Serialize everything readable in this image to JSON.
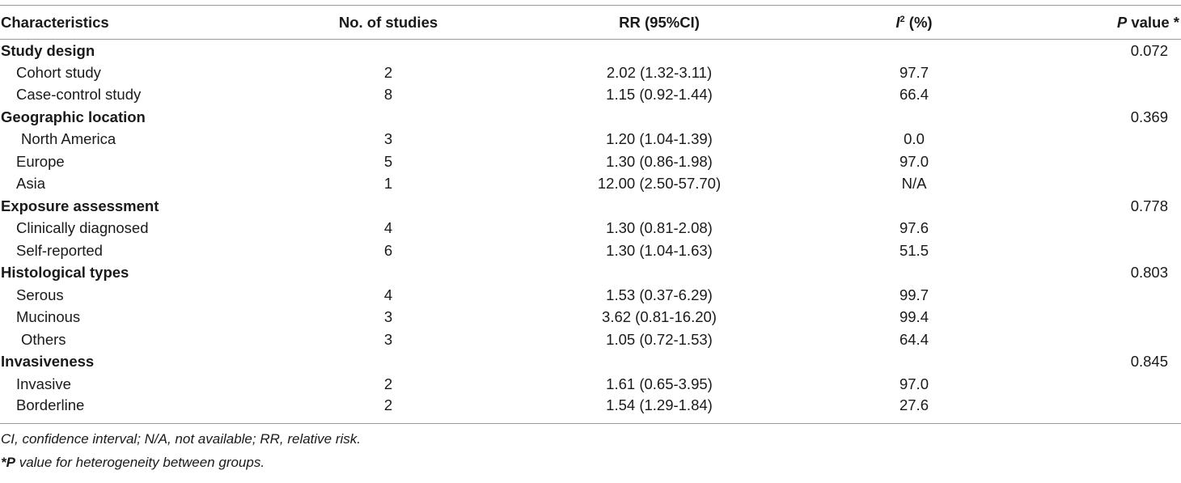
{
  "table": {
    "headers": {
      "characteristics": "Characteristics",
      "studies": "No. of studies",
      "rr": "RR (95%CI)",
      "i2_letter": "I",
      "i2_sup": "2",
      "i2_unit": " (%)",
      "p_letter": "P",
      "p_rest": " value *"
    },
    "rows": [
      {
        "name": "Study design",
        "studies": "",
        "rr": "",
        "i2": "",
        "p": "0.072"
      },
      {
        "name": "Cohort study",
        "studies": "2",
        "rr": "2.02 (1.32-3.11)",
        "i2": "97.7",
        "p": ""
      },
      {
        "name": "Case-control study",
        "studies": "8",
        "rr": "1.15 (0.92-1.44)",
        "i2": "66.4",
        "p": ""
      },
      {
        "name": "Geographic location",
        "studies": "",
        "rr": "",
        "i2": "",
        "p": "0.369"
      },
      {
        "name": "North America",
        "studies": "3",
        "rr": "1.20 (1.04-1.39)",
        "i2": "0.0",
        "p": ""
      },
      {
        "name": "Europe",
        "studies": "5",
        "rr": "1.30 (0.86-1.98)",
        "i2": "97.0",
        "p": ""
      },
      {
        "name": "Asia",
        "studies": "1",
        "rr": "12.00 (2.50-57.70)",
        "i2": "N/A",
        "p": ""
      },
      {
        "name": "Exposure assessment",
        "studies": "",
        "rr": "",
        "i2": "",
        "p": "0.778"
      },
      {
        "name": "Clinically diagnosed",
        "studies": "4",
        "rr": "1.30 (0.81-2.08)",
        "i2": "97.6",
        "p": ""
      },
      {
        "name": "Self-reported",
        "studies": "6",
        "rr": "1.30 (1.04-1.63)",
        "i2": "51.5",
        "p": ""
      },
      {
        "name": "Histological types",
        "studies": "",
        "rr": "",
        "i2": "",
        "p": "0.803"
      },
      {
        "name": "Serous",
        "studies": "4",
        "rr": "1.53 (0.37-6.29)",
        "i2": "99.7",
        "p": ""
      },
      {
        "name": "Mucinous",
        "studies": "3",
        "rr": "3.62 (0.81-16.20)",
        "i2": "99.4",
        "p": ""
      },
      {
        "name": "Others",
        "studies": "3",
        "rr": "1.05 (0.72-1.53)",
        "i2": "64.4",
        "p": ""
      },
      {
        "name": "Invasiveness",
        "studies": "",
        "rr": "",
        "i2": "",
        "p": "0.845"
      },
      {
        "name": "Invasive",
        "studies": "2",
        "rr": "1.61 (0.65-3.95)",
        "i2": "97.0",
        "p": ""
      },
      {
        "name": "Borderline",
        "studies": "2",
        "rr": "1.54 (1.29-1.84)",
        "i2": "27.6",
        "p": ""
      }
    ]
  },
  "footnotes": {
    "abbreviations": "CI, confidence interval; N/A, not available; RR, relative risk.",
    "p_marker": "*P",
    "p_note": " value for heterogeneity between groups."
  }
}
